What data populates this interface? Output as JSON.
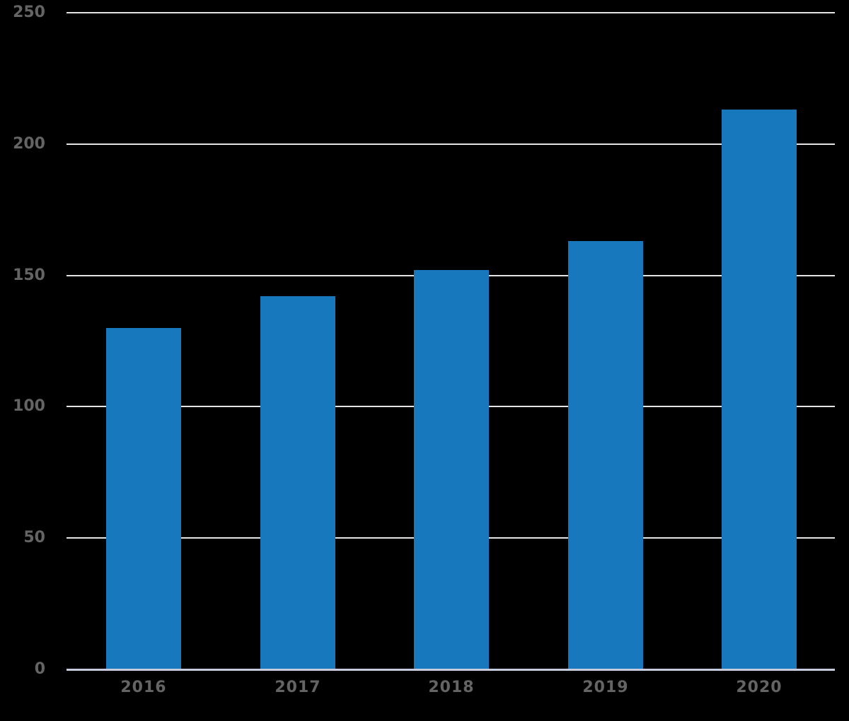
{
  "chart_data": {
    "type": "bar",
    "title": "",
    "categories": [
      "2016",
      "2017",
      "2018",
      "2019",
      "2020"
    ],
    "values": [
      130,
      142,
      152,
      163,
      213
    ],
    "xlabel": "",
    "ylabel": "",
    "ylim": [
      0,
      250
    ],
    "yticks": [
      0,
      50,
      100,
      150,
      200,
      250
    ],
    "grid": true,
    "legend_position": "none",
    "colors": {
      "background": "#000000",
      "bar": "#1878bd",
      "gridline": "#e4e4e4",
      "axis_line": "#c6ccde",
      "tick_label": "#646464"
    }
  }
}
